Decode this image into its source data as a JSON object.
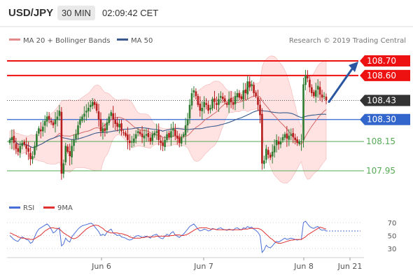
{
  "header": {
    "symbol": "USD/JPY",
    "timeframe": "30 MIN",
    "time": "02:09:42 CET"
  },
  "legend": {
    "ma20": "MA 20 + Bollinger Bands",
    "ma50": "MA 50"
  },
  "source": "Research © 2019 Trading Central",
  "rsi_legend": {
    "rsi": "RSI",
    "ma": "9MA"
  },
  "colors": {
    "resistance": "#ee1111",
    "pivot": "#3366cc",
    "support": "#55aa55",
    "current": "#333333",
    "candle_up": "#2e7d32",
    "candle_down": "#b71c1c",
    "ma20": "#d46a6a",
    "ma50": "#3a5a8c",
    "bollinger": "#ffd9d9",
    "arrow": "#2a55a0",
    "rsi": "#4a6ed8",
    "rsi_ma": "#e03030"
  },
  "chart_data": [
    {
      "type": "candlestick",
      "title": "USD/JPY",
      "x_ticks": [
        "Jun 6",
        "Jun 7",
        "Jun 8",
        "Jun 21"
      ],
      "y_ticks": [
        "108.15",
        "107.95"
      ],
      "levels": [
        {
          "name": "resistance-2",
          "value": 108.7,
          "label": "108.70",
          "role": "resistance"
        },
        {
          "name": "resistance-1",
          "value": 108.6,
          "label": "108.60",
          "role": "resistance"
        },
        {
          "name": "last-price",
          "value": 108.43,
          "label": "108.43",
          "role": "current"
        },
        {
          "name": "pivot",
          "value": 108.3,
          "label": "108.30",
          "role": "pivot"
        },
        {
          "name": "support-1",
          "value": 108.15,
          "role": "support"
        },
        {
          "name": "support-2",
          "value": 107.95,
          "role": "support"
        }
      ],
      "ylim": [
        107.86,
        108.86
      ],
      "grid": false,
      "close": [
        108.16,
        108.18,
        108.14,
        108.1,
        108.08,
        108.12,
        108.14,
        108.13,
        108.1,
        108.08,
        108.03,
        108.05,
        108.12,
        108.2,
        108.24,
        108.22,
        108.25,
        108.29,
        108.32,
        108.3,
        108.28,
        108.26,
        108.3,
        108.32,
        108.36,
        107.93,
        108.0,
        108.12,
        108.08,
        108.05,
        108.12,
        108.16,
        108.2,
        108.26,
        108.3,
        108.32,
        108.34,
        108.36,
        108.38,
        108.4,
        108.42,
        108.4,
        108.36,
        108.3,
        108.22,
        108.24,
        108.22,
        108.28,
        108.32,
        108.35,
        108.3,
        108.27,
        108.25,
        108.27,
        108.22,
        108.21,
        108.19,
        108.16,
        108.14,
        108.15,
        108.17,
        108.2,
        108.22,
        108.2,
        108.18,
        108.19,
        108.2,
        108.18,
        108.15,
        108.2,
        108.21,
        108.22,
        108.16,
        108.14,
        108.12,
        108.16,
        108.2,
        108.18,
        108.22,
        108.24,
        108.19,
        108.17,
        108.14,
        108.18,
        108.2,
        108.26,
        108.3,
        108.4,
        108.48,
        108.5,
        108.46,
        108.4,
        108.36,
        108.38,
        108.42,
        108.4,
        108.36,
        108.38,
        108.44,
        108.42,
        108.4,
        108.44,
        108.46,
        108.44,
        108.42,
        108.4,
        108.44,
        108.42,
        108.4,
        108.46,
        108.48,
        108.45,
        108.44,
        108.5,
        108.48,
        108.56,
        108.52,
        108.54,
        108.48,
        108.46,
        108.4,
        108.33,
        108.0,
        108.02,
        108.1,
        108.06,
        108.04,
        108.08,
        108.12,
        108.16,
        108.13,
        108.15,
        108.18,
        108.2,
        108.17,
        108.19,
        108.2,
        108.18,
        108.16,
        108.14,
        108.15,
        108.15,
        108.54,
        108.6,
        108.58,
        108.52,
        108.48,
        108.46,
        108.5,
        108.53,
        108.47,
        108.45,
        108.46,
        108.43
      ]
    },
    {
      "type": "line",
      "title": "RSI",
      "y_ticks": [
        70,
        50,
        30
      ],
      "ylim": [
        18,
        82
      ],
      "series": [
        {
          "name": "RSI",
          "values": [
            50,
            47,
            44,
            42,
            41,
            45,
            48,
            46,
            44,
            43,
            38,
            40,
            48,
            55,
            60,
            62,
            64,
            66,
            68,
            65,
            60,
            54,
            56,
            60,
            62,
            34,
            37,
            46,
            42,
            40,
            48,
            52,
            56,
            60,
            63,
            65,
            66,
            67,
            68,
            69,
            68,
            64,
            60,
            56,
            50,
            52,
            50,
            55,
            58,
            60,
            54,
            52,
            50,
            51,
            48,
            47,
            46,
            44,
            43,
            44,
            47,
            49,
            50,
            49,
            47,
            48,
            49,
            48,
            46,
            50,
            51,
            52,
            48,
            46,
            45,
            49,
            52,
            50,
            54,
            56,
            51,
            49,
            47,
            50,
            52,
            56,
            60,
            64,
            66,
            68,
            64,
            60,
            57,
            58,
            60,
            59,
            57,
            58,
            61,
            60,
            59,
            61,
            62,
            60,
            59,
            58,
            60,
            59,
            58,
            61,
            62,
            60,
            59,
            62,
            61,
            64,
            62,
            63,
            60,
            58,
            55,
            50,
            24,
            28,
            35,
            32,
            31,
            34,
            38,
            41,
            40,
            42,
            44,
            46,
            44,
            45,
            46,
            45,
            44,
            43,
            44,
            44,
            70,
            72,
            68,
            64,
            62,
            61,
            63,
            64,
            60,
            58,
            59,
            57
          ]
        },
        {
          "name": "9MA",
          "values": [
            54,
            53,
            51,
            50,
            48,
            47,
            46,
            46,
            45,
            45,
            44,
            44,
            45,
            47,
            49,
            51,
            54,
            57,
            59,
            61,
            62,
            62,
            61,
            61,
            60,
            57,
            54,
            52,
            50,
            48,
            46,
            45,
            46,
            48,
            51,
            54,
            57,
            60,
            62,
            64,
            65,
            66,
            66,
            65,
            63,
            61,
            58,
            56,
            55,
            54,
            54,
            54,
            54,
            53,
            53,
            52,
            51,
            50,
            48,
            47,
            46,
            46,
            46,
            46,
            47,
            47,
            48,
            48,
            48,
            48,
            48,
            49,
            49,
            49,
            49,
            49,
            49,
            49,
            50,
            50,
            51,
            51,
            51,
            50,
            50,
            51,
            52,
            54,
            56,
            58,
            60,
            61,
            62,
            62,
            62,
            62,
            61,
            60,
            60,
            60,
            59,
            59,
            59,
            59,
            59,
            59,
            59,
            59,
            59,
            59,
            59,
            59,
            59,
            60,
            60,
            60,
            61,
            61,
            61,
            61,
            61,
            60,
            58,
            55,
            52,
            49,
            46,
            44,
            41,
            39,
            38,
            38,
            39,
            40,
            41,
            42,
            43,
            43,
            44,
            44,
            44,
            44,
            46,
            48,
            51,
            53,
            55,
            57,
            59,
            61,
            63,
            62,
            61,
            60
          ]
        }
      ]
    }
  ]
}
